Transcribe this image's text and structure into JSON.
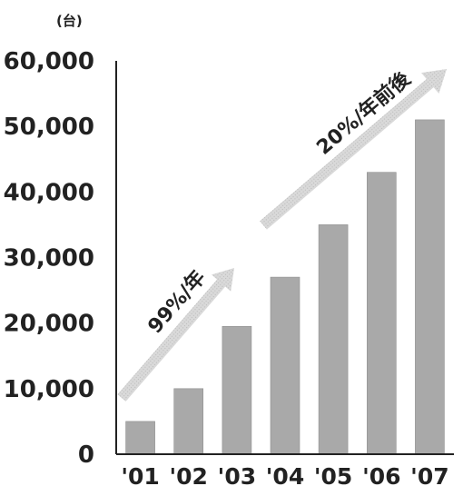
{
  "chart_data": {
    "type": "bar",
    "title": "",
    "unit_label": "(台)",
    "xlabel": "",
    "ylabel": "",
    "categories": [
      "'01",
      "'02",
      "'03",
      "'04",
      "'05",
      "'06",
      "'07"
    ],
    "values": [
      5000,
      10000,
      19500,
      27000,
      35000,
      43000,
      51000
    ],
    "ylim": [
      0,
      60000
    ],
    "yticks": [
      0,
      10000,
      20000,
      30000,
      40000,
      50000,
      60000
    ],
    "ytick_labels": [
      "0",
      "10,000",
      "20,000",
      "30,000",
      "40,000",
      "50,000",
      "60,000"
    ],
    "grid": false,
    "legend": "none",
    "annotations": [
      {
        "text": "99%/年"
      },
      {
        "text": "20%/年前後"
      }
    ],
    "colors": {
      "bar": "#a9a9a9",
      "bar_edge": "#8f8f8f",
      "axis": "#222222",
      "arrow": "#d2d2d2",
      "text": "#222222"
    }
  }
}
